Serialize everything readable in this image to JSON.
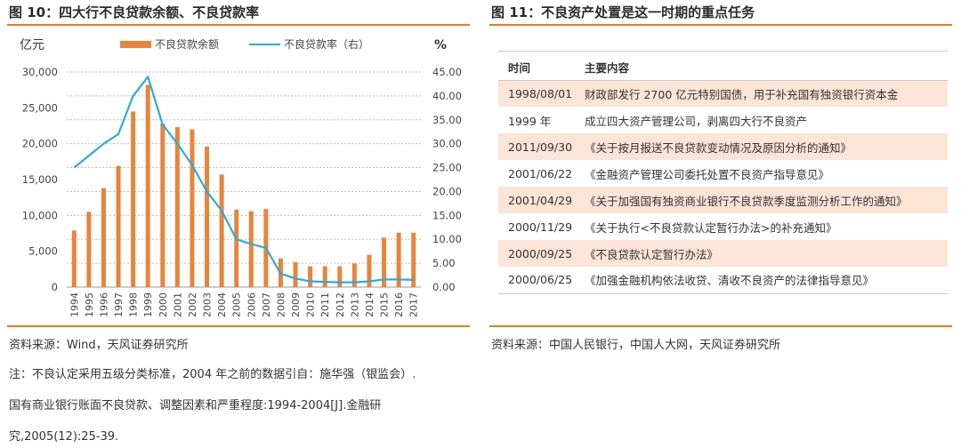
{
  "left": {
    "title": "图 10：四大行不良贷款余额、不良贷款率",
    "source": "资料来源：Wind，天风证券研究所",
    "notes": [
      "注：不良认定采用五级分类标准，2004 年之前的数据引自：施华强（银监会）.",
      "国有商业银行账面不良贷款、调整因素和严重程度:1994-2004[J].金融研",
      "究,2005(12):25-39."
    ]
  },
  "right": {
    "title": "图 11：不良资产处置是这一时期的重点任务",
    "source": "资料来源：中国人民银行，中国人大网，天风证券研究所",
    "table": {
      "headers": [
        "时间",
        "主要内容"
      ],
      "rows": [
        {
          "time": "1998/08/01",
          "content": "财政部发行 2700 亿元特别国债，用于补充国有独资银行资本金",
          "shaded": true
        },
        {
          "time": "1999 年",
          "content": "成立四大资产管理公司，剥离四大行不良资产",
          "shaded": false
        },
        {
          "time": "2011/09/30",
          "content": "《关于按月报送不良贷款变动情况及原因分析的通知》",
          "shaded": true
        },
        {
          "time": "2001/06/22",
          "content": "《金融资产管理公司委托处置不良资产指导意见》",
          "shaded": false
        },
        {
          "time": "2001/04/29",
          "content": "《关于加强国有独资商业银行不良贷款季度监测分析工作的通知》",
          "shaded": true
        },
        {
          "time": "2000/11/29",
          "content": "《关于执行<不良贷款认定暂行办法>的补充通知》",
          "shaded": false
        },
        {
          "time": "2000/09/25",
          "content": "《不良贷款认定暂行办法》",
          "shaded": true
        },
        {
          "time": "2000/06/25",
          "content": "《加强金融机构依法收贷、清收不良资产的法律指导意见》",
          "shaded": false
        }
      ]
    }
  },
  "chart_data": {
    "type": "bar",
    "left_unit": "亿元",
    "right_unit": "%",
    "categories": [
      "1994",
      "1995",
      "1996",
      "1997",
      "1998",
      "1999",
      "2000",
      "2001",
      "2002",
      "2003",
      "2004",
      "2005",
      "2006",
      "2007",
      "2008",
      "2009",
      "2010",
      "2011",
      "2012",
      "2013",
      "2014",
      "2015",
      "2016",
      "2017"
    ],
    "series": [
      {
        "name": "不良贷款余额",
        "type": "bar",
        "axis": "left",
        "color": "#e9843a",
        "values": [
          7900,
          10500,
          13800,
          16900,
          24500,
          28200,
          22800,
          22300,
          22000,
          19600,
          15700,
          10800,
          10600,
          10900,
          4000,
          3500,
          2900,
          2900,
          2900,
          3300,
          4500,
          6900,
          7600,
          7600
        ]
      },
      {
        "name": "不良贷款率（右）",
        "type": "line",
        "axis": "right",
        "color": "#29abe2",
        "values": [
          25,
          27.5,
          30,
          32,
          40,
          44,
          34,
          30,
          25.5,
          20,
          16,
          10,
          9,
          8.2,
          2.8,
          1.8,
          1.2,
          1.1,
          1.0,
          1.0,
          1.2,
          1.6,
          1.6,
          1.5
        ]
      }
    ],
    "ylim_left": [
      0,
      30000
    ],
    "ylim_right": [
      0,
      45
    ],
    "yticks_left": [
      "0",
      "5,000",
      "10,000",
      "15,000",
      "20,000",
      "25,000",
      "30,000"
    ],
    "yticks_right": [
      "0.00",
      "5.00",
      "10.00",
      "15.00",
      "20.00",
      "25.00",
      "30.00",
      "35.00",
      "40.00",
      "45.00"
    ],
    "grid": true,
    "legend_position": "top"
  }
}
